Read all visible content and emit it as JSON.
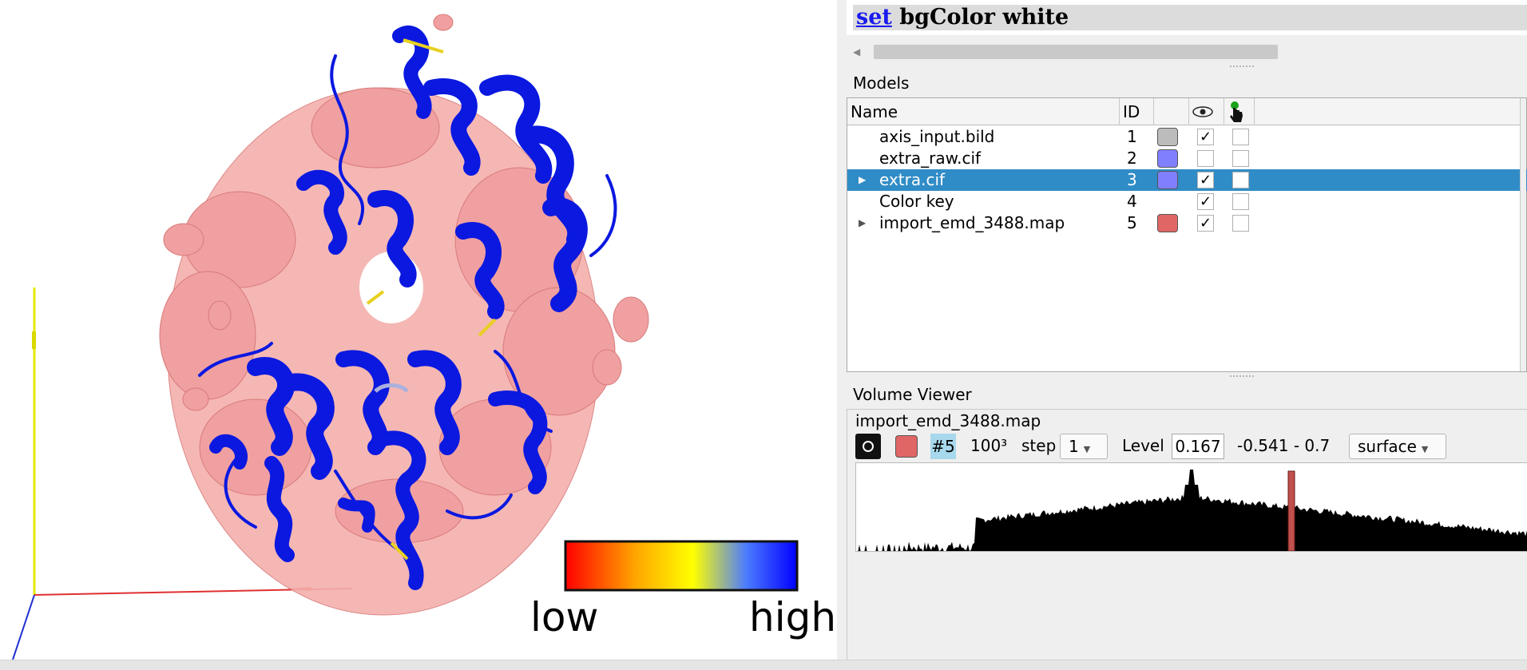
{
  "command_log": {
    "link_word": "set",
    "rest": " bgColor white"
  },
  "color_key": {
    "low_label": "low",
    "high_label": "high",
    "gradient_colors": [
      "#ff0000",
      "#ffa500",
      "#ffff00",
      "#4c7cff",
      "#0000ff"
    ]
  },
  "models": {
    "title": "Models",
    "columns": {
      "name": "Name",
      "id": "ID",
      "shown_icon": "eye-icon",
      "pick_icon": "pointer-hand-icon"
    },
    "rows": [
      {
        "name": "axis_input.bild",
        "id": "1",
        "color": "#bcbcbc",
        "shown": "✓",
        "expandable": false,
        "selected": false
      },
      {
        "name": "extra_raw.cif",
        "id": "2",
        "color": "#8080ff",
        "shown": "",
        "expandable": false,
        "selected": false
      },
      {
        "name": "extra.cif",
        "id": "3",
        "color": "#8080ff",
        "shown": "✓",
        "expandable": true,
        "selected": true
      },
      {
        "name": "Color key",
        "id": "4",
        "color": "",
        "shown": "✓",
        "expandable": false,
        "selected": false
      },
      {
        "name": "import_emd_3488.map",
        "id": "5",
        "color": "#e06666",
        "shown": "✓",
        "expandable": true,
        "selected": false
      }
    ]
  },
  "volume_viewer": {
    "title": "Volume Viewer",
    "map_name": "import_emd_3488.map",
    "model_id": "#5",
    "size": "100³",
    "step_label": "step",
    "step_value": "1",
    "level_label": "Level",
    "level_value": "0.167",
    "range": "-0.541 - 0.7",
    "style": "surface",
    "map_color": "#e06666"
  }
}
